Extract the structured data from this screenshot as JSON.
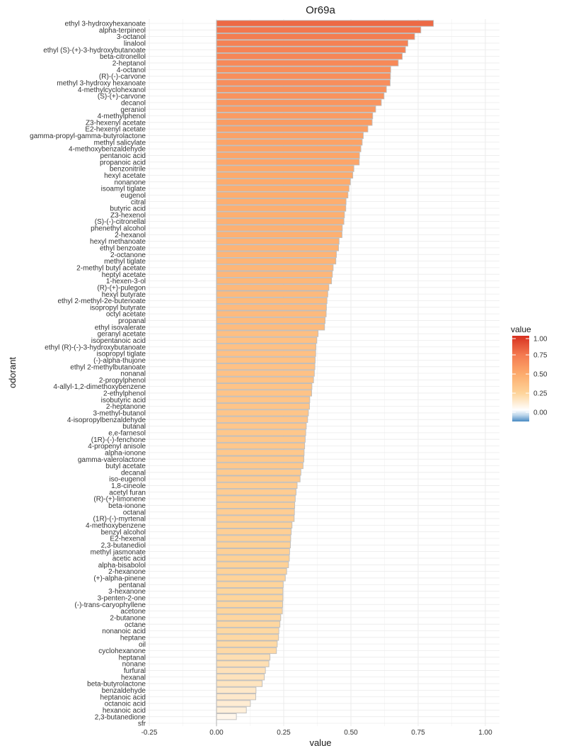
{
  "chart_data": {
    "type": "bar",
    "orientation": "horizontal",
    "title": "Or69a",
    "xlabel": "value",
    "ylabel": "odorant",
    "xlim": [
      -0.25,
      1.05
    ],
    "x_ticks": [
      "-0.25",
      "0.00",
      "0.25",
      "0.50",
      "0.75",
      "1.00"
    ],
    "x_tick_values": [
      -0.25,
      0,
      0.25,
      0.5,
      0.75,
      1.0
    ],
    "grid": true,
    "legend": {
      "title": "value",
      "position": "right",
      "ticks": [
        "1.00",
        "0.75",
        "0.50",
        "0.25",
        "0.00"
      ],
      "tick_values": [
        1.0,
        0.75,
        0.5,
        0.25,
        0.0
      ],
      "range": [
        -0.12,
        1.0
      ]
    },
    "color_scale": {
      "stops": [
        {
          "value": -0.12,
          "color": "#4a8bc4"
        },
        {
          "value": -0.04,
          "color": "#b9d4ea"
        },
        {
          "value": 0.03,
          "color": "#ffffff"
        },
        {
          "value": 0.25,
          "color": "#fed49a"
        },
        {
          "value": 0.5,
          "color": "#fdab6c"
        },
        {
          "value": 0.75,
          "color": "#f47a50"
        },
        {
          "value": 1.0,
          "color": "#d7301f"
        }
      ],
      "bar_outline": "#bdbdbd"
    },
    "categories": [
      "ethyl 3-hydroxyhexanoate",
      "alpha-terpineol",
      "3-octanol",
      "linalool",
      "ethyl (S)-(+)-3-hydroxybutanoate",
      "beta-citronellol",
      "2-heptanol",
      "4-octanol",
      "(R)-(-)-carvone",
      "methyl 3-hydroxy hexanoate",
      "4-methylcyclohexanol",
      "(S)-(+)-carvone",
      "decanol",
      "geraniol",
      "4-methylphenol",
      "Z3-hexenyl acetate",
      "E2-hexenyl acetate",
      "gamma-propyl-gamma-butyrolactone",
      "methyl salicylate",
      "4-methoxybenzaldehyde",
      "pentanoic acid",
      "propanoic acid",
      "benzonitrile",
      "hexyl acetate",
      "nonanone",
      "isoamyl tiglate",
      "eugenol",
      "citral",
      "butyric acid",
      "Z3-hexenol",
      "(S)-(-)-citronellal",
      "phenethyl alcohol",
      "2-hexanol",
      "hexyl methanoate",
      "ethyl benzoate",
      "2-octanone",
      "methyl tiglate",
      "2-methyl butyl acetate",
      "heptyl acetate",
      "1-hexen-3-ol",
      "(R)-(+)-pulegon",
      "hexyl butyrate",
      "ethyl 2-methyl-2e-butenoate",
      "isopropyl butyrate",
      "octyl acetate",
      "propanal",
      "ethyl isovalerate",
      "geranyl acetate",
      "isopentanoic acid",
      "ethyl (R)-(-)-3-hydroxybutanoate",
      "isopropyl tiglate",
      "(-)-alpha-thujone",
      "ethyl 2-methylbutanoate",
      "nonanal",
      "2-propylphenol",
      "4-allyl-1,2-dimethoxybenzene",
      "2-ethylphenol",
      "isobutyric acid",
      "2-heptanone",
      "3-methyl-butanol",
      "4-isopropylbenzaldehyde",
      "butanal",
      "e,e-farnesol",
      "(1R)-(-)-fenchone",
      "4-propenyl anisole",
      "alpha-ionone",
      "gamma-valerolactone",
      "butyl acetate",
      "decanal",
      "iso-eugenol",
      "1,8-cineole",
      "acetyl furan",
      "(R)-(+)-limonene",
      "beta-ionone",
      "octanal",
      "(1R)-(-)-myrtenal",
      "4-methoxybenzene",
      "benzyl alcohol",
      "E2-hexenal",
      "2,3-butanediol",
      "methyl jasmonate",
      "acetic acid",
      "alpha-bisabolol",
      "2-hexanone",
      "(+)-alpha-pinene",
      "pentanal",
      "3-hexanone",
      "3-penten-2-one",
      "(-)-trans-caryophyllene",
      "acetone",
      "2-butanone",
      "octane",
      "nonanoic acid",
      "heptane",
      "oil",
      "cyclohexanone",
      "heptanal",
      "nonane",
      "furfural",
      "hexanal",
      "beta-butyrolactone",
      "benzaldehyde",
      "heptanoic acid",
      "octanoic acid",
      "hexanoic acid",
      "2,3-butanedione",
      "sfr"
    ],
    "values": [
      0.807,
      0.76,
      0.737,
      0.712,
      0.703,
      0.691,
      0.676,
      0.648,
      0.647,
      0.646,
      0.632,
      0.623,
      0.613,
      0.592,
      0.581,
      0.579,
      0.563,
      0.546,
      0.542,
      0.537,
      0.532,
      0.531,
      0.511,
      0.507,
      0.498,
      0.493,
      0.489,
      0.482,
      0.481,
      0.476,
      0.474,
      0.468,
      0.467,
      0.456,
      0.454,
      0.446,
      0.444,
      0.434,
      0.431,
      0.428,
      0.418,
      0.414,
      0.411,
      0.409,
      0.408,
      0.404,
      0.402,
      0.378,
      0.373,
      0.37,
      0.369,
      0.367,
      0.366,
      0.364,
      0.361,
      0.355,
      0.354,
      0.347,
      0.346,
      0.342,
      0.339,
      0.334,
      0.332,
      0.33,
      0.328,
      0.326,
      0.325,
      0.322,
      0.314,
      0.311,
      0.3,
      0.296,
      0.293,
      0.291,
      0.29,
      0.289,
      0.281,
      0.278,
      0.276,
      0.275,
      0.272,
      0.271,
      0.268,
      0.261,
      0.256,
      0.248,
      0.247,
      0.247,
      0.246,
      0.245,
      0.239,
      0.236,
      0.232,
      0.231,
      0.226,
      0.223,
      0.199,
      0.195,
      0.182,
      0.178,
      0.17,
      0.147,
      0.146,
      0.126,
      0.111,
      0.074,
      0.0
    ]
  }
}
